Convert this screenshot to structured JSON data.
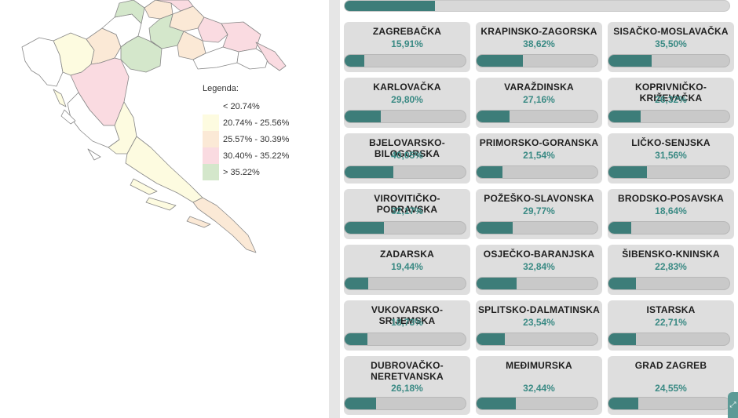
{
  "legend": {
    "title": "Legenda:",
    "items": [
      {
        "label": "< 20.74%",
        "color": "#ffffff"
      },
      {
        "label": "20.74% - 25.56%",
        "color": "#fdfbe0"
      },
      {
        "label": "25.57% - 30.39%",
        "color": "#fbe9d6"
      },
      {
        "label": "30.40% - 35.22%",
        "color": "#fadbe1"
      },
      {
        "label": "> 35.22%",
        "color": "#d4e7cb"
      }
    ]
  },
  "top_progress": 0.235,
  "counties": [
    {
      "name": "ZAGREBAČKA",
      "value": "15,91%",
      "fill": 0.1591
    },
    {
      "name": "KRAPINSKO-ZAGORSKA",
      "value": "38,62%",
      "fill": 0.3862
    },
    {
      "name": "SISAČKO-MOSLAVAČKA",
      "value": "35,50%",
      "fill": 0.355
    },
    {
      "name": "KARLOVAČKA",
      "value": "29,80%",
      "fill": 0.298
    },
    {
      "name": "VARAŽDINSKA",
      "value": "27,16%",
      "fill": 0.2716
    },
    {
      "name": "KOPRIVNIČKO-KRIŽEVAČKA",
      "value": "26,32%",
      "fill": 0.2632
    },
    {
      "name": "BJELOVARSKO-BILOGORSKA",
      "value": "40,05%",
      "fill": 0.4005
    },
    {
      "name": "PRIMORSKO-GORANSKA",
      "value": "21,54%",
      "fill": 0.2154
    },
    {
      "name": "LIČKO-SENJSKA",
      "value": "31,56%",
      "fill": 0.3156
    },
    {
      "name": "VIROVITIČKO-PODRAVSKA",
      "value": "32,17%",
      "fill": 0.3217
    },
    {
      "name": "POŽEŠKO-SLAVONSKA",
      "value": "29,77%",
      "fill": 0.2977
    },
    {
      "name": "BRODSKO-POSAVSKA",
      "value": "18,64%",
      "fill": 0.1864
    },
    {
      "name": "ZADARSKA",
      "value": "19,44%",
      "fill": 0.1944
    },
    {
      "name": "OSJEČKO-BARANJSKA",
      "value": "32,84%",
      "fill": 0.3284
    },
    {
      "name": "ŠIBENSKO-KNINSKA",
      "value": "22,83%",
      "fill": 0.2283
    },
    {
      "name": "VUKOVARSKO-SRIJEMSKA",
      "value": "18,73%",
      "fill": 0.1873
    },
    {
      "name": "SPLITSKO-DALMATINSKA",
      "value": "23,54%",
      "fill": 0.2354
    },
    {
      "name": "ISTARSKA",
      "value": "22,71%",
      "fill": 0.2271
    },
    {
      "name": "DUBROVAČKO-NERETVANSKA",
      "value": "26,18%",
      "fill": 0.2618
    },
    {
      "name": "MEĐIMURSKA",
      "value": "32,44%",
      "fill": 0.3244
    },
    {
      "name": "GRAD ZAGREB",
      "value": "24,55%",
      "fill": 0.2455
    }
  ],
  "corner_icon": "expand-icon"
}
